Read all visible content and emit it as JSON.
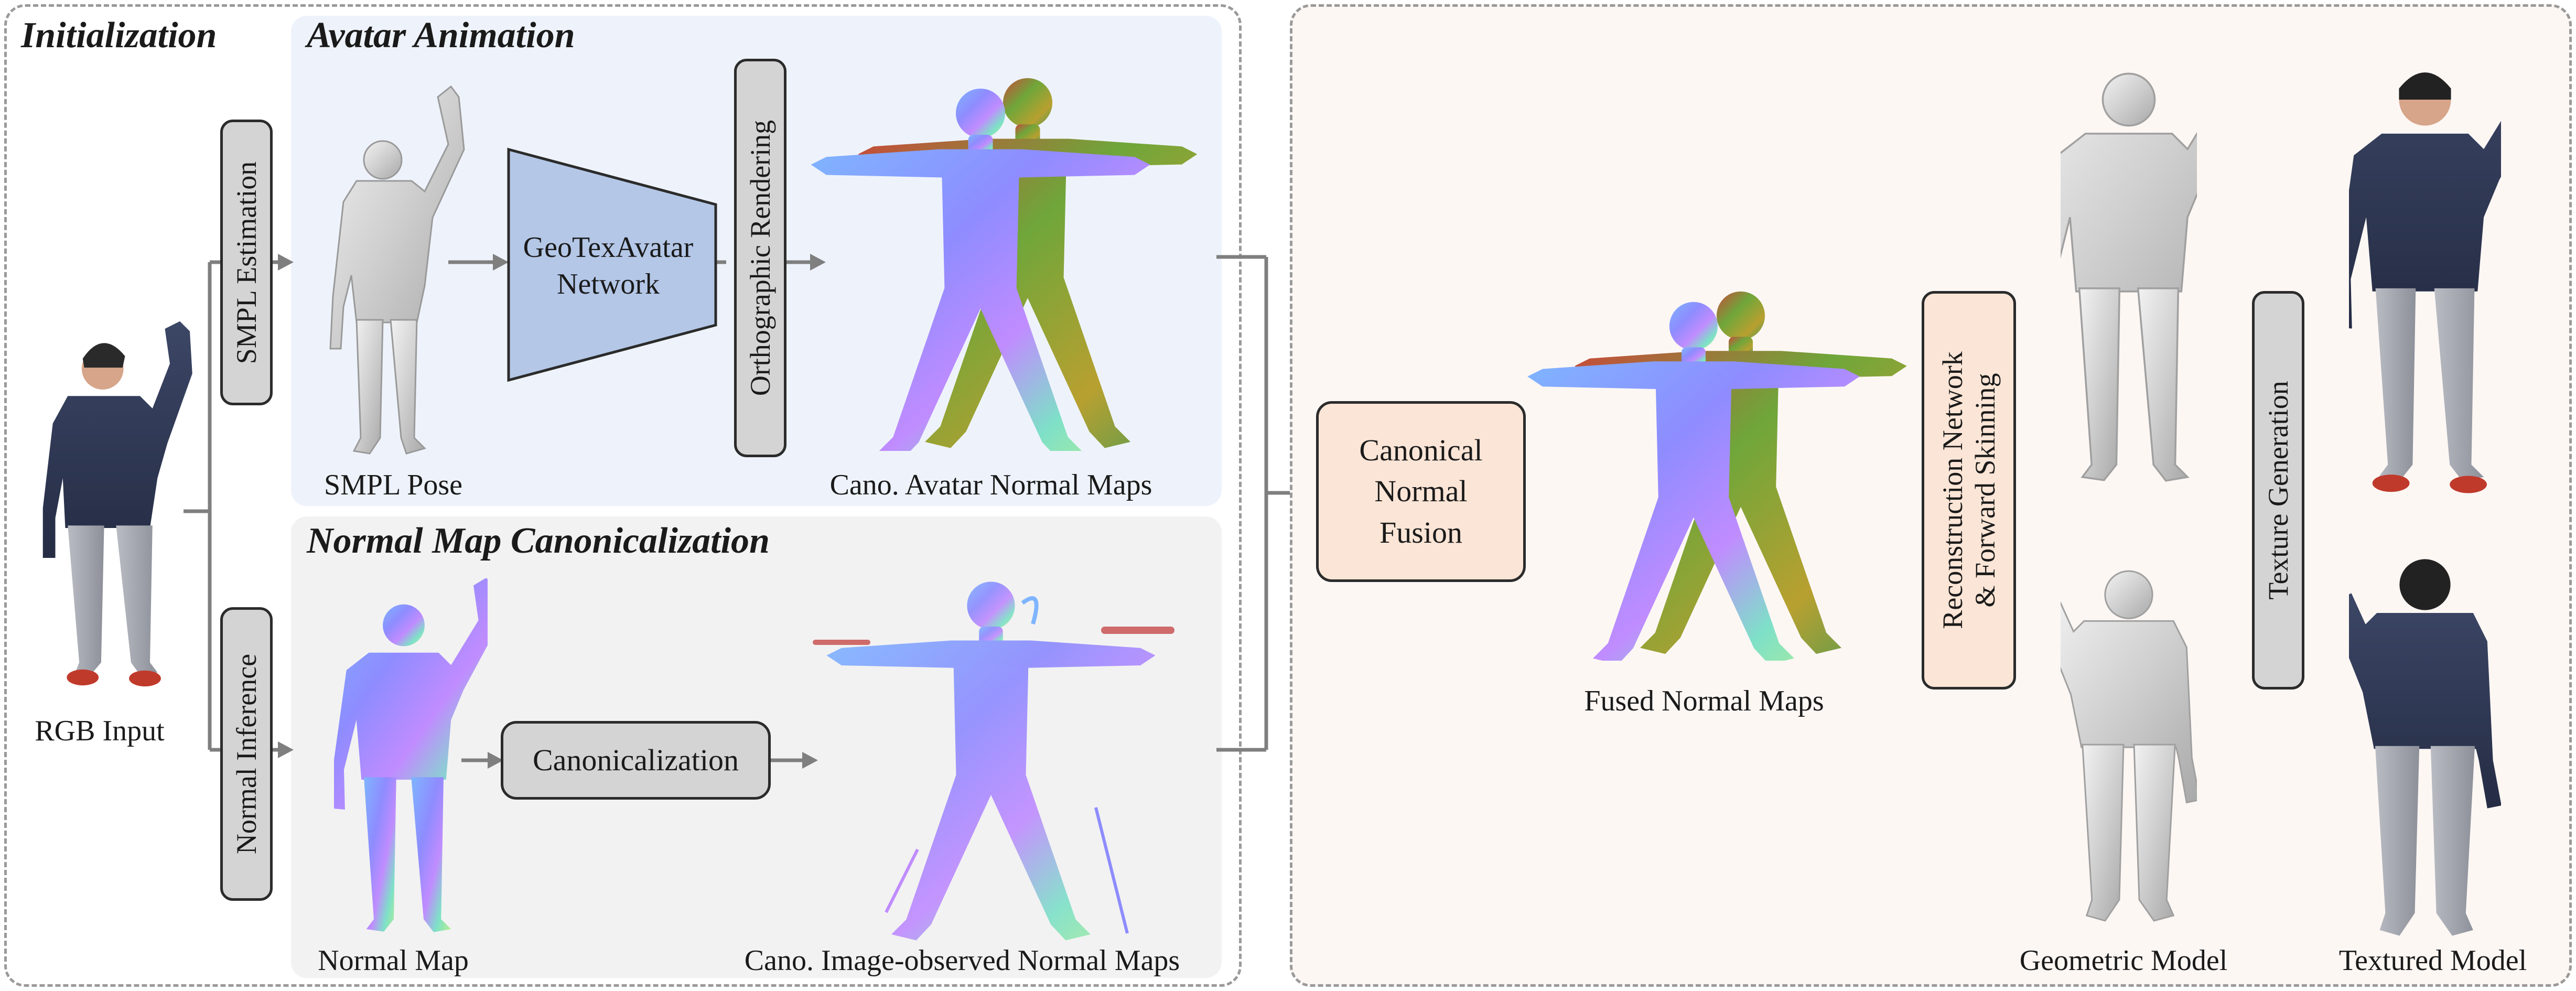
{
  "left_panel": {
    "initialization_title": "Initialization",
    "rgb_input_label": "RGB Input",
    "smpl_estimation_label": "SMPL Estimation",
    "normal_inference_label": "Normal Inference"
  },
  "avatar_animation": {
    "title": "Avatar Animation",
    "smpl_pose_label": "SMPL Pose",
    "network_label_line1": "GeoTexAvatar",
    "network_label_line2": "Network",
    "orthographic_rendering_label": "Orthographic Rendering",
    "cano_avatar_label": "Cano. Avatar Normal Maps"
  },
  "normal_map_canonicalization": {
    "title": "Normal Map Canonicalization",
    "normal_map_label": "Normal Map",
    "canonicalization_label": "Canonicalization",
    "cano_image_label": "Cano. Image-observed Normal Maps"
  },
  "right_panel": {
    "fusion_line1": "Canonical",
    "fusion_line2": "Normal",
    "fusion_line3": "Fusion",
    "fused_label": "Fused Normal Maps",
    "reconstruction_line1": "Reconstruction Network",
    "reconstruction_line2": "& Forward Skinning",
    "texture_generation_label": "Texture Generation",
    "geometric_model_label": "Geometric Model",
    "textured_model_label": "Textured Model"
  },
  "colors": {
    "avatar_panel_bg": "#eef3fb",
    "canon_panel_bg": "#f2f2f2",
    "right_panel_bg": "#fdf7f4",
    "network_fill": "#b4c7e7",
    "fusion_fill": "#fbe5d6",
    "box_fill": "#d4d4d4",
    "arrow_color": "#7f7f7f"
  }
}
